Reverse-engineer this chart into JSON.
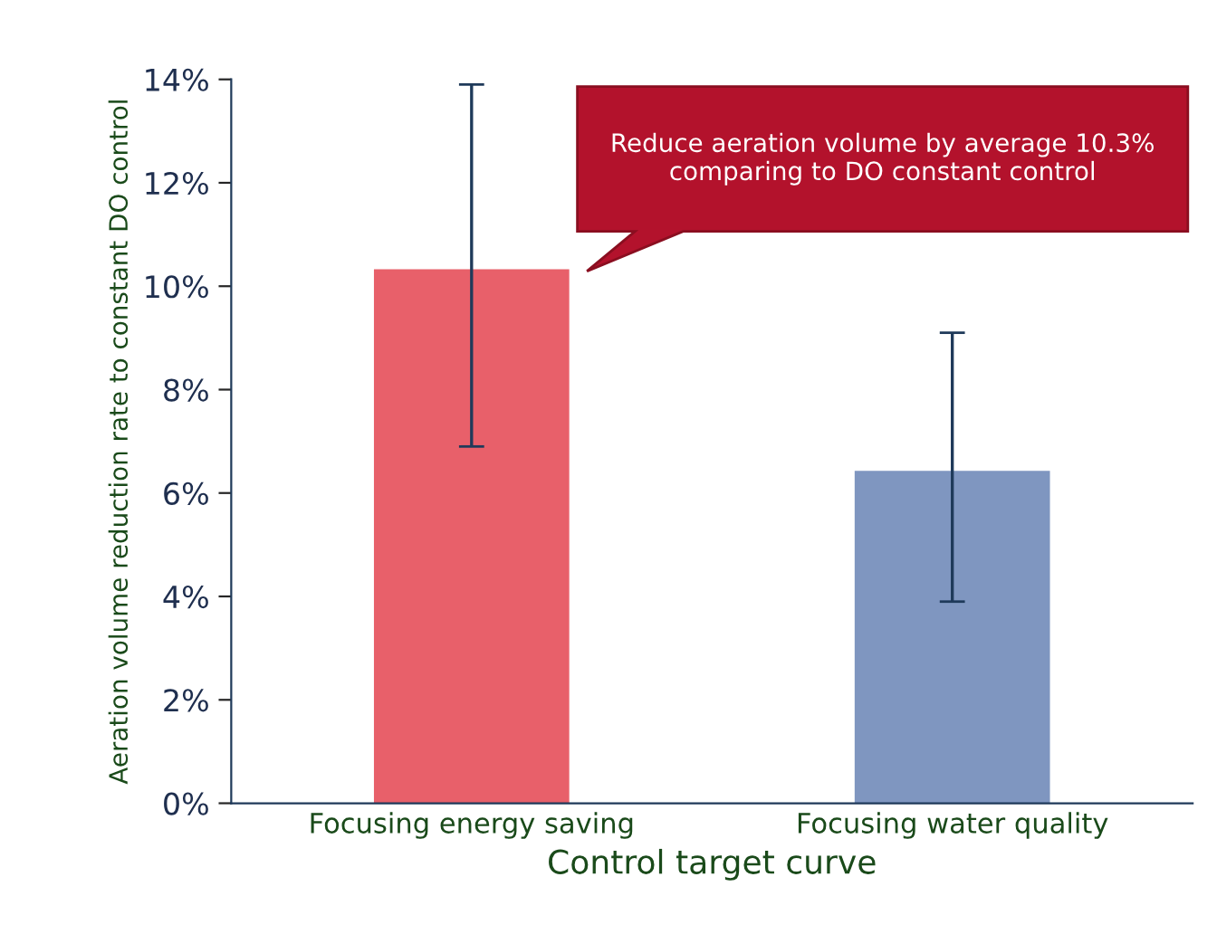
{
  "chart_data": {
    "type": "bar",
    "categories": [
      "Focusing energy saving",
      "Focusing water quality"
    ],
    "values": [
      10.3,
      6.4
    ],
    "colors": [
      "#e8606a",
      "#7f96c0"
    ],
    "errors": [
      [
        6.9,
        13.9
      ],
      [
        3.9,
        9.1
      ]
    ],
    "xlabel": "Control target curve",
    "ylabel": "Aeration volume reduction rate to constant DO control",
    "ylim": [
      0,
      14
    ],
    "yticks": [
      {
        "value": 0,
        "label": "0%"
      },
      {
        "value": 2,
        "label": "2%"
      },
      {
        "value": 4,
        "label": "4%"
      },
      {
        "value": 6,
        "label": "6%"
      },
      {
        "value": 8,
        "label": "8%"
      },
      {
        "value": 10,
        "label": "10%"
      },
      {
        "value": 12,
        "label": "12%"
      },
      {
        "value": 14,
        "label": "14%"
      }
    ],
    "annotations": [
      "Reduce aeration volume by average 10.3% comparing to DO constant control"
    ],
    "grid": false,
    "legend": false
  }
}
